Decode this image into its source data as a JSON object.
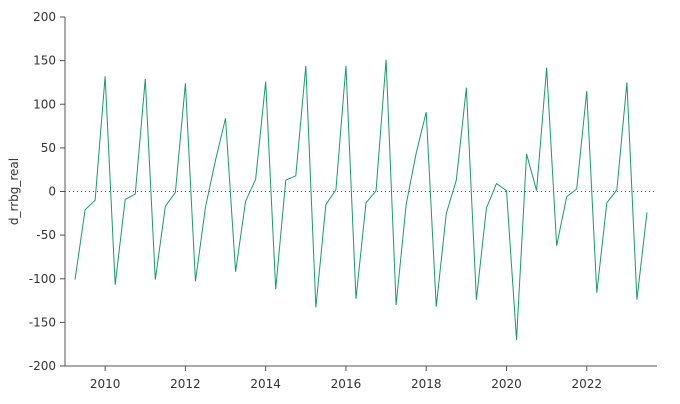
{
  "chart_data": {
    "type": "line",
    "title": "",
    "xlabel": "",
    "ylabel": "d_rrbg_real",
    "xlim": [
      2009.0,
      2023.75
    ],
    "ylim": [
      -200,
      200
    ],
    "x_ticks": [
      2010,
      2012,
      2014,
      2016,
      2018,
      2020,
      2022
    ],
    "x_tick_labels": [
      "2010",
      "2012",
      "2014",
      "2016",
      "2018",
      "2020",
      "2022"
    ],
    "y_ticks": [
      -200,
      -150,
      -100,
      -50,
      0,
      50,
      100,
      150,
      200
    ],
    "y_tick_labels": [
      "-200",
      "-150",
      "-100",
      "-50",
      "0",
      "50",
      "100",
      "150",
      "200"
    ],
    "zero_line": true,
    "grid": false,
    "series_color": "#1a9a6c",
    "zero_line_color": "#555555",
    "series": [
      {
        "name": "",
        "x": [
          2009.25,
          2009.5,
          2009.75,
          2010.0,
          2010.25,
          2010.5,
          2010.75,
          2011.0,
          2011.25,
          2011.5,
          2011.75,
          2012.0,
          2012.25,
          2012.5,
          2012.75,
          2013.0,
          2013.25,
          2013.5,
          2013.75,
          2014.0,
          2014.25,
          2014.5,
          2014.75,
          2015.0,
          2015.25,
          2015.5,
          2015.75,
          2016.0,
          2016.25,
          2016.5,
          2016.75,
          2017.0,
          2017.25,
          2017.5,
          2017.75,
          2018.0,
          2018.25,
          2018.5,
          2018.75,
          2019.0,
          2019.25,
          2019.5,
          2019.75,
          2020.0,
          2020.25,
          2020.5,
          2020.75,
          2021.0,
          2021.25,
          2021.5,
          2021.75,
          2022.0,
          2022.25,
          2022.5,
          2022.75,
          2023.0,
          2023.25,
          2023.5
        ],
        "values": [
          -101,
          -21,
          -10,
          132,
          -107,
          -9,
          -3,
          129,
          -101,
          -17,
          -1,
          124,
          -103,
          -18,
          36,
          84,
          -92,
          -11,
          14,
          126,
          -112,
          13,
          18,
          144,
          -133,
          -15,
          2,
          144,
          -123,
          -13,
          1,
          151,
          -130,
          -15,
          44,
          91,
          -132,
          -25,
          13,
          119,
          -124,
          -19,
          9,
          1,
          -170,
          43,
          1,
          142,
          -62,
          -6,
          3,
          115,
          -116,
          -13,
          2,
          125,
          -124,
          -24
        ]
      }
    ]
  }
}
